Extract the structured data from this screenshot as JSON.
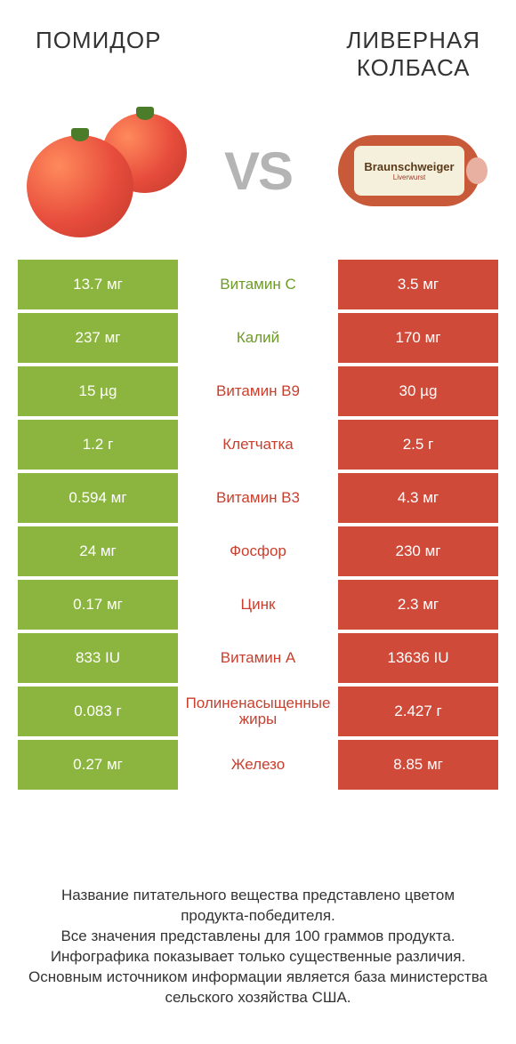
{
  "colors": {
    "green": "#8bb53f",
    "red": "#d04a3a",
    "text_green": "#6e9a2a",
    "text_red": "#c7402f",
    "white": "#ffffff",
    "bg": "#ffffff"
  },
  "header": {
    "left_title": "ПОМИДОР",
    "right_title_line1": "ЛИВЕРНАЯ",
    "right_title_line2": "КОЛБАСА",
    "vs": "VS",
    "sausage_brand": "Braunschweiger",
    "sausage_sub": "Liverwurst"
  },
  "table": {
    "rows": [
      {
        "left": "13.7 мг",
        "label": "Витамин C",
        "right": "3.5 мг",
        "winner": "left"
      },
      {
        "left": "237 мг",
        "label": "Калий",
        "right": "170 мг",
        "winner": "left"
      },
      {
        "left": "15 µg",
        "label": "Витамин B9",
        "right": "30 µg",
        "winner": "right"
      },
      {
        "left": "1.2 г",
        "label": "Клетчатка",
        "right": "2.5 г",
        "winner": "right"
      },
      {
        "left": "0.594 мг",
        "label": "Витамин B3",
        "right": "4.3 мг",
        "winner": "right"
      },
      {
        "left": "24 мг",
        "label": "Фосфор",
        "right": "230 мг",
        "winner": "right"
      },
      {
        "left": "0.17 мг",
        "label": "Цинк",
        "right": "2.3 мг",
        "winner": "right"
      },
      {
        "left": "833 IU",
        "label": "Витамин A",
        "right": "13636 IU",
        "winner": "right"
      },
      {
        "left": "0.083 г",
        "label": "Полиненасыщенные жиры",
        "right": "2.427 г",
        "winner": "right"
      },
      {
        "left": "0.27 мг",
        "label": "Железо",
        "right": "8.85 мг",
        "winner": "right"
      }
    ]
  },
  "footer": {
    "line1": "Название питательного вещества представлено цветом продукта-победителя.",
    "line2": "Все значения представлены для 100 граммов продукта.",
    "line3": "Инфографика показывает только существенные различия.",
    "line4": "Основным источником информации является база министерства сельского хозяйства США."
  }
}
